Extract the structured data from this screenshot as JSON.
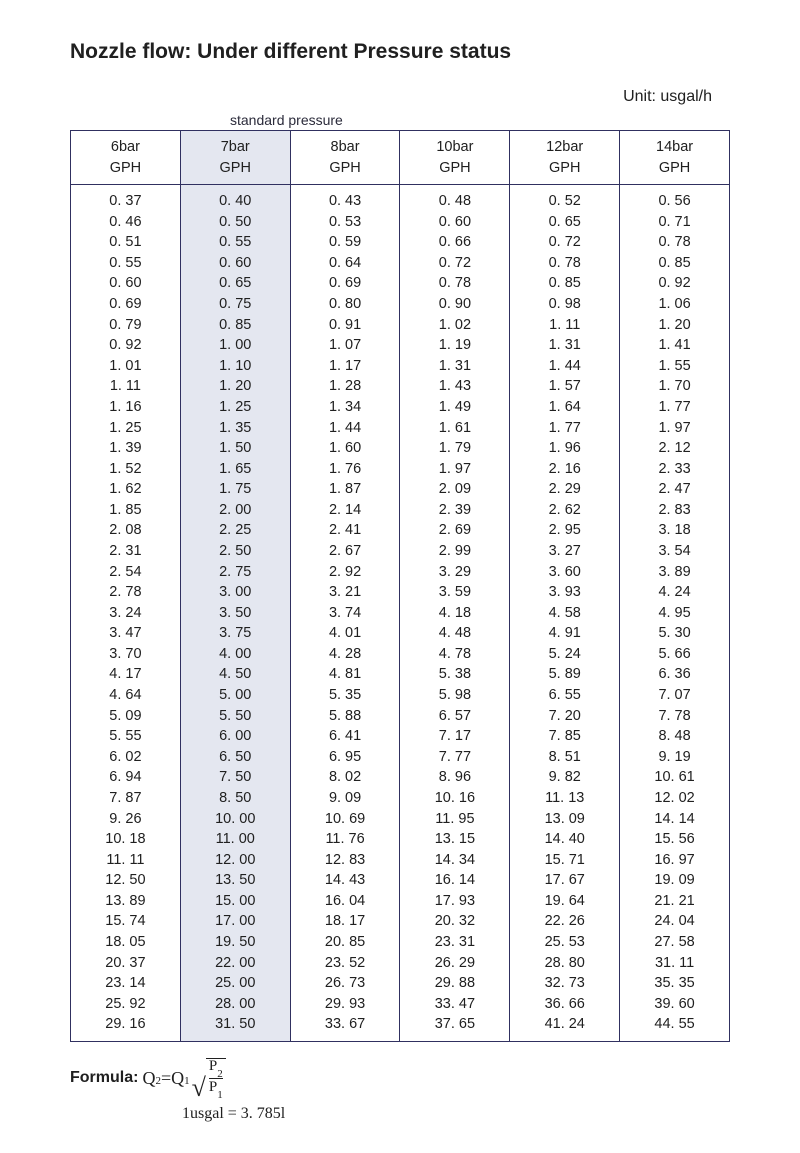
{
  "title": "Nozzle flow: Under different Pressure status",
  "unit_label": "Unit: usgal/h",
  "std_pressure_label": "standard pressure",
  "table": {
    "type": "table",
    "highlight_col_index": 1,
    "highlight_bg": "#e4e7f0",
    "border_color": "#303060",
    "font_size": 14.5,
    "columns": [
      {
        "bar": "6bar",
        "gph": "GPH"
      },
      {
        "bar": "7bar",
        "gph": "GPH"
      },
      {
        "bar": "8bar",
        "gph": "GPH"
      },
      {
        "bar": "10bar",
        "gph": "GPH"
      },
      {
        "bar": "12bar",
        "gph": "GPH"
      },
      {
        "bar": "14bar",
        "gph": "GPH"
      }
    ],
    "rows": [
      [
        "0. 37",
        "0. 40",
        "0. 43",
        "0. 48",
        "0. 52",
        "0. 56"
      ],
      [
        "0. 46",
        "0. 50",
        "0. 53",
        "0. 60",
        "0. 65",
        "0. 71"
      ],
      [
        "0. 51",
        "0. 55",
        "0. 59",
        "0. 66",
        "0. 72",
        "0. 78"
      ],
      [
        "0. 55",
        "0. 60",
        "0. 64",
        "0. 72",
        "0. 78",
        "0. 85"
      ],
      [
        "0. 60",
        "0. 65",
        "0. 69",
        "0. 78",
        "0. 85",
        "0. 92"
      ],
      [
        "0. 69",
        "0. 75",
        "0. 80",
        "0. 90",
        "0. 98",
        "1. 06"
      ],
      [
        "0. 79",
        "0. 85",
        "0. 91",
        "1. 02",
        "1. 11",
        "1. 20"
      ],
      [
        "0. 92",
        "1. 00",
        "1. 07",
        "1. 19",
        "1. 31",
        "1. 41"
      ],
      [
        "1. 01",
        "1. 10",
        "1. 17",
        "1. 31",
        "1. 44",
        "1. 55"
      ],
      [
        "1. 11",
        "1. 20",
        "1. 28",
        "1. 43",
        "1. 57",
        "1. 70"
      ],
      [
        "1. 16",
        "1. 25",
        "1. 34",
        "1. 49",
        "1. 64",
        "1. 77"
      ],
      [
        "1. 25",
        "1. 35",
        "1. 44",
        "1. 61",
        "1. 77",
        "1. 97"
      ],
      [
        "1. 39",
        "1. 50",
        "1. 60",
        "1. 79",
        "1. 96",
        "2. 12"
      ],
      [
        "1. 52",
        "1. 65",
        "1. 76",
        "1. 97",
        "2. 16",
        "2. 33"
      ],
      [
        "1. 62",
        "1. 75",
        "1. 87",
        "2. 09",
        "2. 29",
        "2. 47"
      ],
      [
        "1. 85",
        "2. 00",
        "2. 14",
        "2. 39",
        "2. 62",
        "2. 83"
      ],
      [
        "2. 08",
        "2. 25",
        "2. 41",
        "2. 69",
        "2. 95",
        "3. 18"
      ],
      [
        "2. 31",
        "2. 50",
        "2. 67",
        "2. 99",
        "3. 27",
        "3. 54"
      ],
      [
        "2. 54",
        "2. 75",
        "2. 92",
        "3. 29",
        "3. 60",
        "3. 89"
      ],
      [
        "2. 78",
        "3. 00",
        "3. 21",
        "3. 59",
        "3. 93",
        "4. 24"
      ],
      [
        "3. 24",
        "3. 50",
        "3. 74",
        "4. 18",
        "4. 58",
        "4. 95"
      ],
      [
        "3. 47",
        "3. 75",
        "4. 01",
        "4. 48",
        "4. 91",
        "5. 30"
      ],
      [
        "3. 70",
        "4. 00",
        "4. 28",
        "4. 78",
        "5. 24",
        "5. 66"
      ],
      [
        "4. 17",
        "4. 50",
        "4. 81",
        "5. 38",
        "5. 89",
        "6. 36"
      ],
      [
        "4. 64",
        "5. 00",
        "5. 35",
        "5. 98",
        "6. 55",
        "7. 07"
      ],
      [
        "5. 09",
        "5. 50",
        "5. 88",
        "6. 57",
        "7. 20",
        "7. 78"
      ],
      [
        "5. 55",
        "6. 00",
        "6. 41",
        "7. 17",
        "7. 85",
        "8. 48"
      ],
      [
        "6. 02",
        "6. 50",
        "6. 95",
        "7. 77",
        "8. 51",
        "9. 19"
      ],
      [
        "6. 94",
        "7. 50",
        "8. 02",
        "8. 96",
        "9. 82",
        "10. 61"
      ],
      [
        "7. 87",
        "8. 50",
        "9. 09",
        "10. 16",
        "11. 13",
        "12. 02"
      ],
      [
        "9. 26",
        "10. 00",
        "10. 69",
        "11. 95",
        "13. 09",
        "14. 14"
      ],
      [
        "10. 18",
        "11. 00",
        "11. 76",
        "13. 15",
        "14. 40",
        "15. 56"
      ],
      [
        "11. 11",
        "12. 00",
        "12. 83",
        "14. 34",
        "15. 71",
        "16. 97"
      ],
      [
        "12. 50",
        "13. 50",
        "14. 43",
        "16. 14",
        "17. 67",
        "19. 09"
      ],
      [
        "13. 89",
        "15. 00",
        "16. 04",
        "17. 93",
        "19. 64",
        "21. 21"
      ],
      [
        "15. 74",
        "17. 00",
        "18. 17",
        "20. 32",
        "22. 26",
        "24. 04"
      ],
      [
        "18. 05",
        "19. 50",
        "20. 85",
        "23. 31",
        "25. 53",
        "27. 58"
      ],
      [
        "20. 37",
        "22. 00",
        "23. 52",
        "26. 29",
        "28. 80",
        "31. 11"
      ],
      [
        "23. 14",
        "25. 00",
        "26. 73",
        "29. 88",
        "32. 73",
        "35. 35"
      ],
      [
        "25. 92",
        "28. 00",
        "29. 93",
        "33. 47",
        "36. 66",
        "39. 60"
      ],
      [
        "29. 16",
        "31. 50",
        "33. 67",
        "37. 65",
        "41. 24",
        "44. 55"
      ]
    ]
  },
  "formula": {
    "label": "Formula:",
    "q2": "Q",
    "q2_sub": "2",
    "eq": " = ",
    "q1": "Q",
    "q1_sub": "1",
    "p2": "P",
    "p2_sub": "2",
    "p1": "P",
    "p1_sub": "1"
  },
  "conversion": "1usgal = 3. 785l"
}
